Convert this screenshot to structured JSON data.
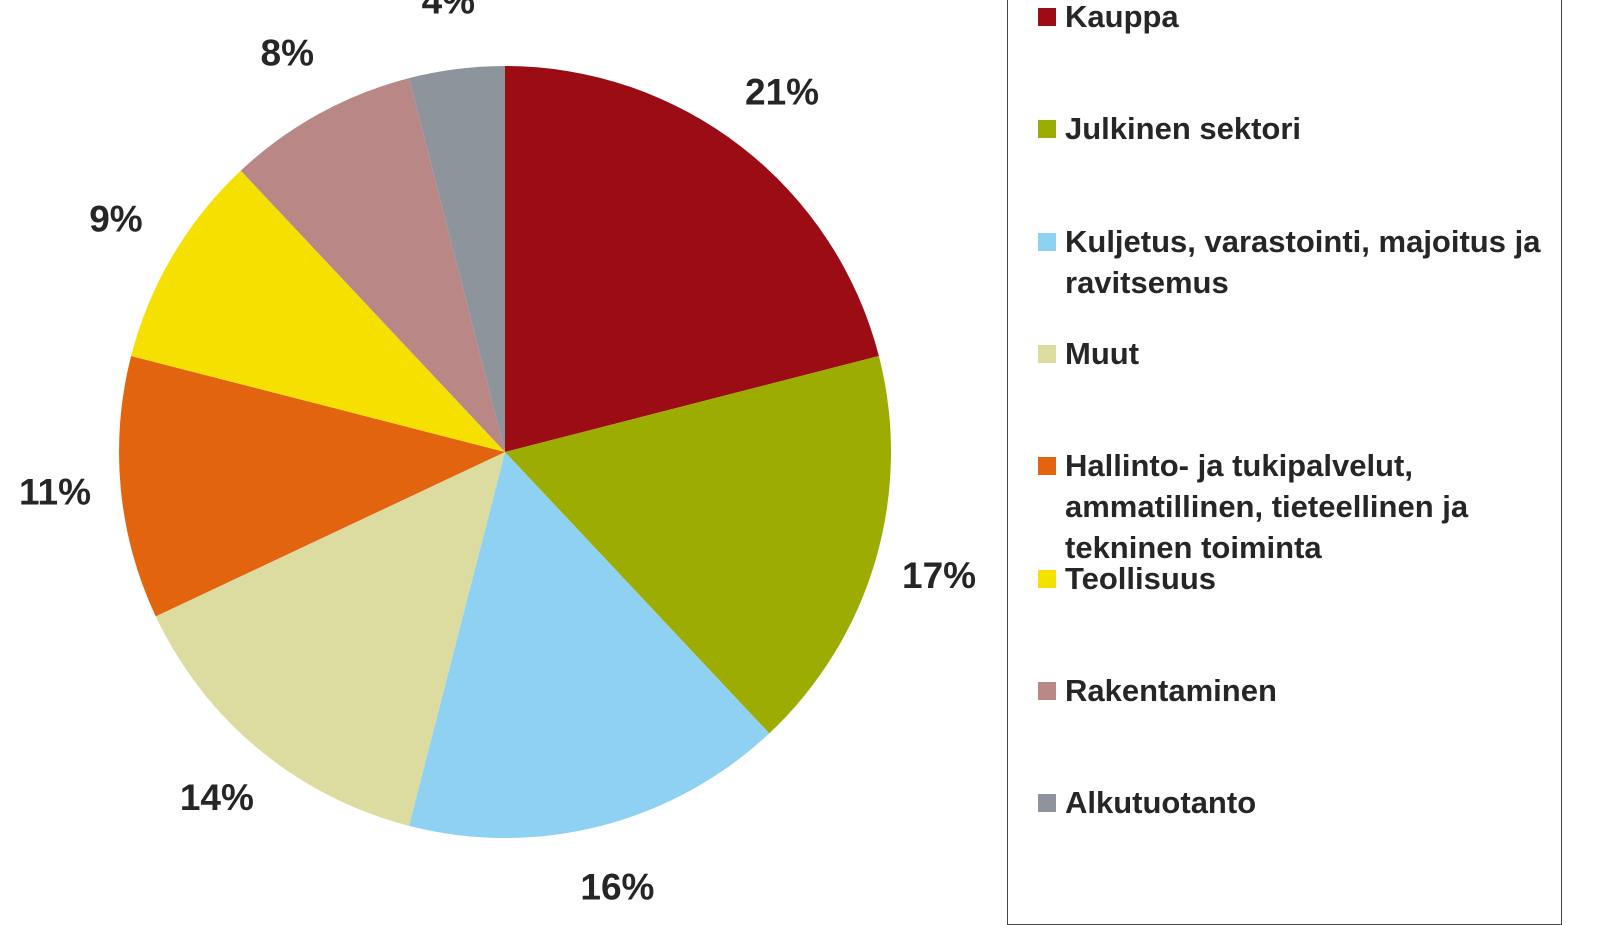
{
  "chart_data": {
    "type": "pie",
    "categories": [
      "Kauppa",
      "Julkinen sektori",
      "Kuljetus, varastointi, majoitus ja ravitsemus",
      "Muut",
      "Hallinto- ja tukipalvelut, ammatillinen, tieteellinen ja tekninen toiminta",
      "Teollisuus",
      "Rakentaminen",
      "Alkutuotanto"
    ],
    "values": [
      21,
      17,
      16,
      14,
      11,
      9,
      8,
      4
    ],
    "value_labels": [
      "21%",
      "17%",
      "16%",
      "14%",
      "11%",
      "9%",
      "8%",
      "4%"
    ],
    "colors": [
      "#9b0c15",
      "#9cac00",
      "#8ed1f2",
      "#dcdca0",
      "#e2640e",
      "#f6e000",
      "#b98886",
      "#8d949c"
    ],
    "legend": "right"
  }
}
